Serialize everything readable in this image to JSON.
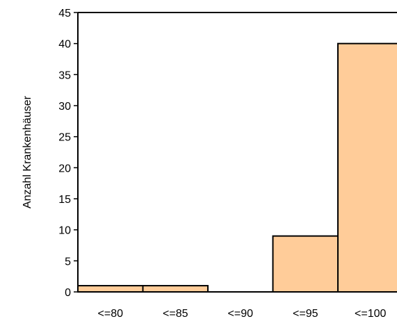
{
  "chart_data": {
    "type": "bar",
    "title": "",
    "xlabel": "",
    "ylabel": "Anzahl Krankenhäuser",
    "categories": [
      "<=80",
      "<=85",
      "<=90",
      "<=95",
      "<=100"
    ],
    "values": [
      1,
      1,
      0,
      9,
      40
    ],
    "ylim": [
      0,
      45
    ],
    "yticks": [
      0,
      5,
      10,
      15,
      20,
      25,
      30,
      35,
      40,
      45
    ],
    "grid": false,
    "legend": "none",
    "bar_color": "#ffcc99",
    "bar_stroke": "#000000"
  }
}
